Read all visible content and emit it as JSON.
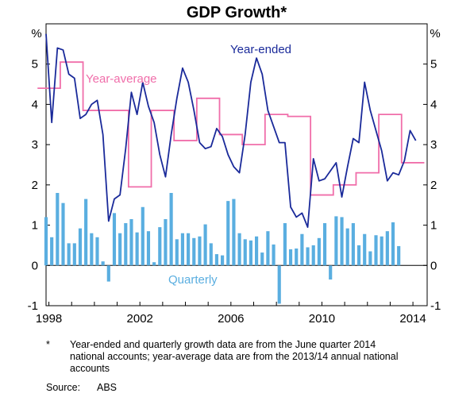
{
  "chart_data": {
    "type": "bar",
    "title": "GDP Growth*",
    "unit_left": "%",
    "unit_right": "%",
    "ylim": [
      -1,
      6
    ],
    "yticks": [
      -1,
      0,
      1,
      2,
      3,
      4,
      5
    ],
    "x_tick_labels": [
      "1998",
      "2002",
      "2006",
      "2010",
      "2014"
    ],
    "x_tick_years": [
      1998,
      2002,
      2006,
      2010,
      2014
    ],
    "xlim": [
      1997.875,
      2014.625
    ],
    "grid": false,
    "colors": {
      "quarterly": "#5aaee0",
      "year_ended": "#1a2a9a",
      "year_average": "#f06eaa"
    },
    "series": [
      {
        "name": "Quarterly",
        "kind": "bar",
        "start": 1997.875,
        "step": 0.25,
        "values": [
          1.2,
          0.7,
          1.8,
          1.55,
          0.55,
          0.55,
          0.92,
          1.65,
          0.8,
          0.7,
          0.1,
          -0.4,
          1.3,
          0.8,
          1.05,
          1.15,
          0.82,
          1.45,
          0.85,
          0.08,
          0.95,
          1.15,
          1.8,
          0.65,
          0.8,
          0.8,
          0.68,
          0.72,
          1.02,
          0.55,
          0.28,
          0.25,
          1.6,
          1.65,
          0.8,
          0.65,
          0.62,
          0.72,
          0.32,
          0.85,
          0.52,
          -0.95,
          1.05,
          0.4,
          0.42,
          0.78,
          0.45,
          0.5,
          0.68,
          1.05,
          -0.35,
          1.22,
          1.2,
          0.92,
          1.05,
          0.5,
          0.78,
          0.35,
          0.75,
          0.72,
          0.85,
          1.07,
          0.48
        ]
      },
      {
        "name": "Year-ended",
        "kind": "line",
        "start": 1997.875,
        "step": 0.25,
        "values": [
          5.75,
          3.55,
          5.4,
          5.35,
          4.75,
          4.65,
          3.65,
          3.75,
          4.0,
          4.1,
          3.25,
          1.1,
          1.65,
          1.75,
          2.9,
          4.3,
          3.75,
          4.55,
          3.95,
          3.55,
          2.75,
          2.2,
          3.25,
          4.15,
          4.9,
          4.55,
          3.85,
          3.05,
          2.9,
          2.95,
          3.4,
          3.2,
          2.75,
          2.45,
          2.3,
          3.25,
          4.55,
          5.15,
          4.75,
          3.85,
          3.45,
          3.05,
          3.05,
          1.45,
          1.2,
          1.3,
          0.95,
          2.65,
          2.1,
          2.15,
          2.35,
          2.55,
          1.7,
          2.45,
          3.15,
          3.05,
          4.55,
          3.85,
          3.35,
          2.85,
          2.1,
          2.3,
          2.25,
          2.6,
          3.35,
          3.1
        ]
      },
      {
        "name": "Year-average",
        "kind": "step",
        "start": 1998,
        "step": 1,
        "values": [
          4.4,
          5.05,
          3.85,
          3.85,
          1.95,
          3.85,
          3.1,
          4.15,
          3.25,
          3.0,
          3.75,
          3.7,
          1.75,
          2.0,
          2.3,
          3.75,
          2.55,
          2.55
        ],
        "last_end": 2014.375
      }
    ],
    "labels": {
      "year_ended": "Year-ended",
      "year_average": "Year-average",
      "quarterly": "Quarterly"
    }
  },
  "footnote": {
    "marker": "*",
    "text": "Year-ended and quarterly growth data are from the June quarter 2014 national accounts; year-average data are from the 2013/14 annual national accounts"
  },
  "source": {
    "label": "Source:",
    "value": "ABS"
  }
}
